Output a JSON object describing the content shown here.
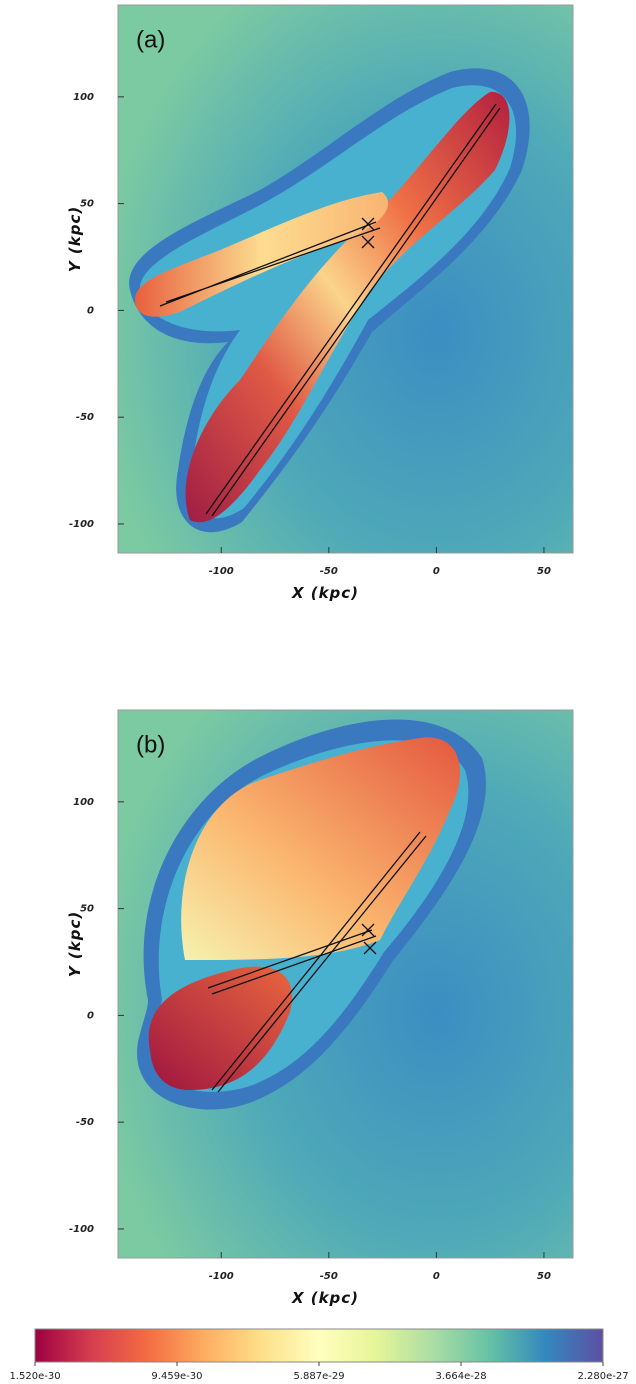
{
  "chart_data": [
    {
      "type": "heatmap",
      "label": "(a)",
      "xlabel": "X (kpc)",
      "ylabel": "Y (kpc)",
      "xlim": [
        -148,
        63.5
      ],
      "ylim": [
        -113.6,
        143
      ],
      "xticks": [
        -100,
        -50,
        0,
        50
      ],
      "yticks": [
        -100,
        -50,
        0,
        50,
        100
      ]
    },
    {
      "type": "heatmap",
      "label": "(b)",
      "xlabel": "X (kpc)",
      "ylabel": "Y (kpc)",
      "xlim": [
        -148,
        63.5
      ],
      "ylim": [
        -113.6,
        143
      ],
      "xticks": [
        -100,
        -50,
        0,
        50
      ],
      "yticks": [
        -100,
        -50,
        0,
        50,
        100
      ]
    }
  ],
  "colorbar": {
    "log": true,
    "lim": [
      1.52e-30,
      2.28e-27
    ],
    "colors": [
      "#9e0142",
      "#d53e4f",
      "#f46d43",
      "#fdae61",
      "#fee08b",
      "#ffffbf",
      "#e6f598",
      "#abdda4",
      "#66c2a5",
      "#3288bd",
      "#5e4fa2"
    ],
    "ticks": [
      {
        "value": 1.52e-30,
        "label": "1.520e-30"
      },
      {
        "value": 9.459e-30,
        "label": "9.459e-30"
      },
      {
        "value": 5.887e-29,
        "label": "5.887e-29"
      },
      {
        "value": 3.664e-28,
        "label": "3.664e-28"
      },
      {
        "value": 2.28e-27,
        "label": "2.280e-27"
      }
    ]
  }
}
